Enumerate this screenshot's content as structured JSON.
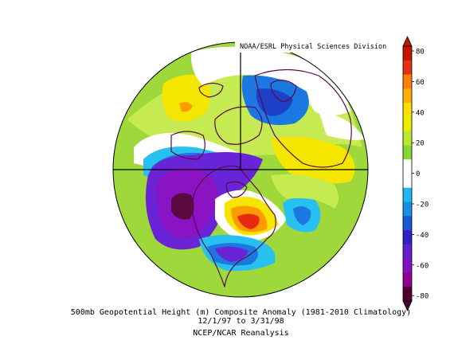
{
  "credit": "NOAA/ESRL Physical Sciences Division",
  "caption": {
    "line1": "500mb Geopotential Height (m) Composite Anomaly (1981-2010 Climatology)",
    "line2": "12/1/97  to 3/31/98",
    "line3": "NCEP/NCAR Reanalysis"
  },
  "colorbar": {
    "tick_labels": [
      "80",
      "60",
      "40",
      "20",
      "0",
      "-20",
      "-40",
      "-60",
      "-80"
    ],
    "colors": [
      "#c01800",
      "#e83010",
      "#ff8000",
      "#ffb000",
      "#ffe000",
      "#e8f000",
      "#b8e830",
      "#88d830",
      "#ffffff",
      "#ffffff",
      "#20b8f0",
      "#1890e0",
      "#1858d0",
      "#3020c8",
      "#6020d0",
      "#8010c0",
      "#900090",
      "#500030"
    ]
  },
  "map_colors": {
    "green": "#9ed83a",
    "light_green": "#c6ea52",
    "yellow": "#f4e600",
    "orange": "#ff9a00",
    "red": "#e82a10",
    "white": "#ffffff",
    "light_blue": "#28c0f0",
    "blue": "#1a78e0",
    "dark_blue": "#1c40c8",
    "violet": "#6a24d8",
    "purple": "#8a14c4",
    "dark_purple": "#5a0a40",
    "coast": "#5a0a4a"
  }
}
